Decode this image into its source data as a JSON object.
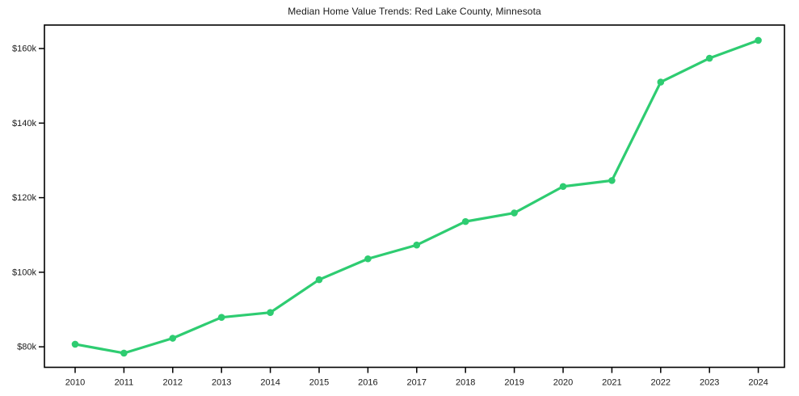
{
  "figure": {
    "title": "Median Home Value Trends: Red Lake County, Minnesota"
  },
  "chart_data": {
    "type": "line",
    "title": "Median Home Value Trends: Red Lake County, Minnesota",
    "series": [
      {
        "name": "Median Home Value",
        "x": [
          2010,
          2011,
          2012,
          2013,
          2014,
          2015,
          2016,
          2017,
          2018,
          2019,
          2020,
          2021,
          2022,
          2023,
          2024
        ],
        "values_thousands_usd": [
          80.7,
          78.3,
          82.3,
          87.9,
          89.2,
          98.0,
          103.6,
          107.3,
          113.6,
          115.9,
          123.0,
          124.6,
          151.0,
          157.4,
          162.2
        ]
      }
    ],
    "xlabel": "",
    "ylabel": "",
    "xtick_labels": [
      "2010",
      "2011",
      "2012",
      "2013",
      "2014",
      "2015",
      "2016",
      "2017",
      "2018",
      "2019",
      "2020",
      "2021",
      "2022",
      "2023",
      "2024"
    ],
    "ytick_labels": [
      "$80k",
      "$100k",
      "$120k",
      "$140k",
      "$160k"
    ],
    "ytick_values_thousands": [
      80,
      100,
      120,
      140,
      160
    ],
    "ylim_thousands": [
      74.5,
      166.3
    ],
    "grid": false,
    "legend_position": "none",
    "line_color": "#2ecc71",
    "marker": "circle",
    "axis_color": "#000000",
    "text_color": "#1a1a1a",
    "background_color": "#ffffff"
  }
}
